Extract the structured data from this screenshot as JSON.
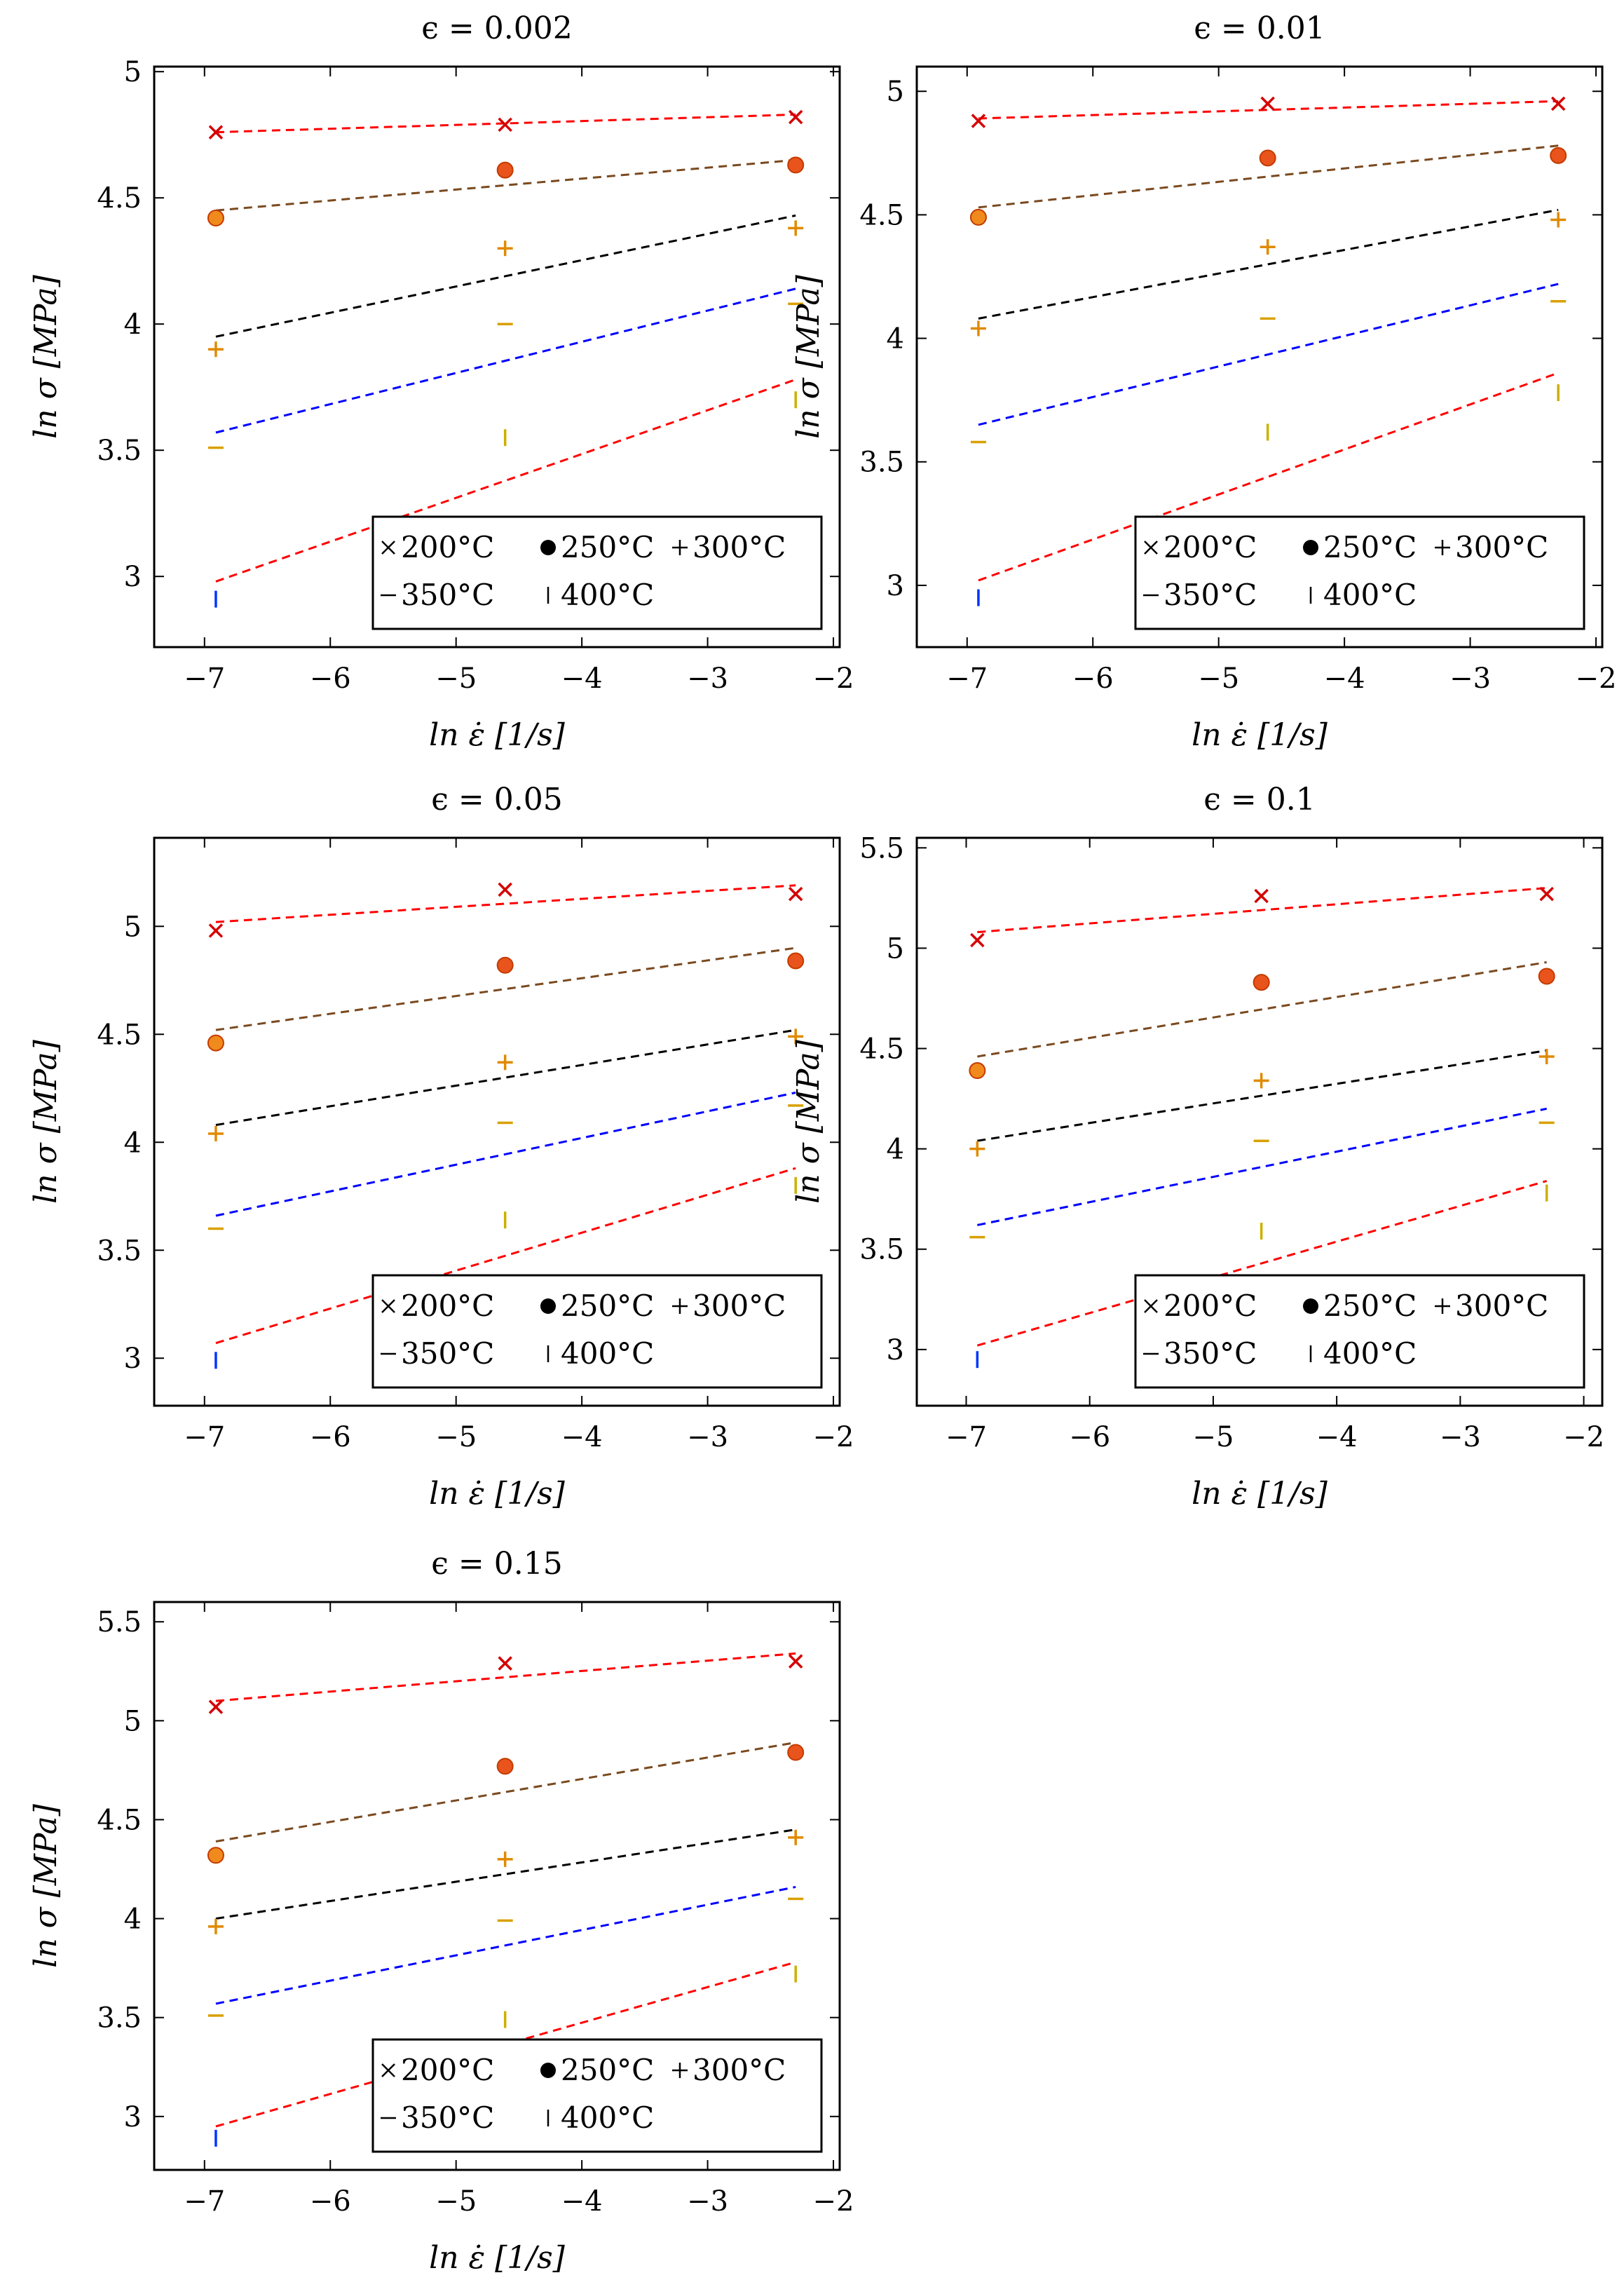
{
  "figure": {
    "xlabel": "ln ε̇ [1/s]",
    "ylabel": "ln σ [MPa]",
    "legend": [
      "200°C",
      "250°C",
      "300°C",
      "350°C",
      "400°C"
    ]
  },
  "colors": {
    "series_200": "#d40000",
    "series_250": "#e8541c",
    "series_300": "#e08a00",
    "series_350": "#d9a000",
    "series_400": "#ccb000",
    "fit_200": "#ff0000",
    "fit_250": "#7a4a20",
    "fit_300": "#000000",
    "fit_350": "#0000ff",
    "fit_400": "#ff0000",
    "marker_400_low": "#0033ff"
  },
  "chart_data": [
    {
      "type": "scatter",
      "title": "ϵ = 0.002",
      "xlabel": "ln ε̇ [1/s]",
      "ylabel": "ln σ [MPa]",
      "xlim": [
        -7.4,
        -1.95
      ],
      "ylim": [
        2.72,
        5.02
      ],
      "xticks": [
        -7,
        -6,
        -5,
        -4,
        -3,
        -2
      ],
      "yticks": [
        3,
        3.5,
        4,
        4.5,
        5
      ],
      "legend_position": "bottom-right",
      "x": [
        -6.91,
        -4.61,
        -2.3
      ],
      "series": [
        {
          "name": "200°C",
          "marker": "x",
          "values": [
            4.76,
            4.79,
            4.82
          ],
          "fit": [
            4.76,
            4.83
          ]
        },
        {
          "name": "250°C",
          "marker": "circle",
          "values": [
            4.42,
            4.61,
            4.63
          ],
          "fit": [
            4.45,
            4.65
          ]
        },
        {
          "name": "300°C",
          "marker": "plus",
          "values": [
            3.9,
            4.3,
            4.38
          ],
          "fit": [
            3.95,
            4.43
          ]
        },
        {
          "name": "350°C",
          "marker": "minus",
          "values": [
            3.51,
            4.0,
            4.08
          ],
          "fit": [
            3.57,
            4.14
          ]
        },
        {
          "name": "400°C",
          "marker": "bar",
          "values": [
            2.91,
            3.55,
            3.7
          ],
          "fit": [
            2.98,
            3.78
          ]
        }
      ]
    },
    {
      "type": "scatter",
      "title": "ϵ = 0.01",
      "xlabel": "ln ε̇ [1/s]",
      "ylabel": "ln σ [MPa]",
      "xlim": [
        -7.4,
        -1.95
      ],
      "ylim": [
        2.75,
        5.1
      ],
      "xticks": [
        -7,
        -6,
        -5,
        -4,
        -3,
        -2
      ],
      "yticks": [
        3,
        3.5,
        4,
        4.5,
        5
      ],
      "legend_position": "bottom-right",
      "x": [
        -6.91,
        -4.61,
        -2.3
      ],
      "series": [
        {
          "name": "200°C",
          "marker": "x",
          "values": [
            4.88,
            4.95,
            4.95
          ],
          "fit": [
            4.89,
            4.96
          ]
        },
        {
          "name": "250°C",
          "marker": "circle",
          "values": [
            4.49,
            4.73,
            4.74
          ],
          "fit": [
            4.53,
            4.78
          ]
        },
        {
          "name": "300°C",
          "marker": "plus",
          "values": [
            4.04,
            4.37,
            4.48
          ],
          "fit": [
            4.08,
            4.52
          ]
        },
        {
          "name": "350°C",
          "marker": "minus",
          "values": [
            3.58,
            4.08,
            4.15
          ],
          "fit": [
            3.65,
            4.22
          ]
        },
        {
          "name": "400°C",
          "marker": "bar",
          "values": [
            2.95,
            3.62,
            3.78
          ],
          "fit": [
            3.02,
            3.86
          ]
        }
      ]
    },
    {
      "type": "scatter",
      "title": "ϵ = 0.05",
      "xlabel": "ln ε̇ [1/s]",
      "ylabel": "ln σ [MPa]",
      "xlim": [
        -7.4,
        -1.95
      ],
      "ylim": [
        2.78,
        5.41
      ],
      "xticks": [
        -7,
        -6,
        -5,
        -4,
        -3,
        -2
      ],
      "yticks": [
        3,
        3.5,
        4,
        4.5,
        5
      ],
      "legend_position": "bottom-right",
      "x": [
        -6.91,
        -4.61,
        -2.3
      ],
      "series": [
        {
          "name": "200°C",
          "marker": "x",
          "values": [
            4.98,
            5.17,
            5.15
          ],
          "fit": [
            5.02,
            5.19
          ]
        },
        {
          "name": "250°C",
          "marker": "circle",
          "values": [
            4.46,
            4.82,
            4.84
          ],
          "fit": [
            4.52,
            4.9
          ]
        },
        {
          "name": "300°C",
          "marker": "plus",
          "values": [
            4.04,
            4.37,
            4.49
          ],
          "fit": [
            4.08,
            4.52
          ]
        },
        {
          "name": "350°C",
          "marker": "minus",
          "values": [
            3.6,
            4.09,
            4.17
          ],
          "fit": [
            3.66,
            4.23
          ]
        },
        {
          "name": "400°C",
          "marker": "bar",
          "values": [
            2.99,
            3.64,
            3.8
          ],
          "fit": [
            3.07,
            3.88
          ]
        }
      ]
    },
    {
      "type": "scatter",
      "title": "ϵ = 0.1",
      "xlabel": "ln ε̇ [1/s]",
      "ylabel": "ln σ [MPa]",
      "xlim": [
        -7.4,
        -1.85
      ],
      "ylim": [
        2.72,
        5.55
      ],
      "xticks": [
        -7,
        -6,
        -5,
        -4,
        -3,
        -2
      ],
      "yticks": [
        3,
        3.5,
        4,
        4.5,
        5,
        5.5
      ],
      "legend_position": "bottom-right",
      "x": [
        -6.91,
        -4.61,
        -2.3
      ],
      "series": [
        {
          "name": "200°C",
          "marker": "x",
          "values": [
            5.04,
            5.26,
            5.27
          ],
          "fit": [
            5.08,
            5.3
          ]
        },
        {
          "name": "250°C",
          "marker": "circle",
          "values": [
            4.39,
            4.83,
            4.86
          ],
          "fit": [
            4.46,
            4.93
          ]
        },
        {
          "name": "300°C",
          "marker": "plus",
          "values": [
            4.0,
            4.34,
            4.46
          ],
          "fit": [
            4.04,
            4.49
          ]
        },
        {
          "name": "350°C",
          "marker": "minus",
          "values": [
            3.56,
            4.04,
            4.13
          ],
          "fit": [
            3.62,
            4.2
          ]
        },
        {
          "name": "400°C",
          "marker": "bar",
          "values": [
            2.95,
            3.59,
            3.78
          ],
          "fit": [
            3.02,
            3.84
          ]
        }
      ]
    },
    {
      "type": "scatter",
      "title": "ϵ = 0.15",
      "xlabel": "ln ε̇ [1/s]",
      "ylabel": "ln σ [MPa]",
      "xlim": [
        -7.4,
        -1.95
      ],
      "ylim": [
        2.73,
        5.6
      ],
      "xticks": [
        -7,
        -6,
        -5,
        -4,
        -3,
        -2
      ],
      "yticks": [
        3,
        3.5,
        4,
        4.5,
        5,
        5.5
      ],
      "legend_position": "bottom-right",
      "x": [
        -6.91,
        -4.61,
        -2.3
      ],
      "series": [
        {
          "name": "200°C",
          "marker": "x",
          "values": [
            5.07,
            5.29,
            5.3
          ],
          "fit": [
            5.1,
            5.34
          ]
        },
        {
          "name": "250°C",
          "marker": "circle",
          "values": [
            4.32,
            4.77,
            4.84
          ],
          "fit": [
            4.39,
            4.89
          ]
        },
        {
          "name": "300°C",
          "marker": "plus",
          "values": [
            3.96,
            4.3,
            4.41
          ],
          "fit": [
            4.0,
            4.45
          ]
        },
        {
          "name": "350°C",
          "marker": "minus",
          "values": [
            3.51,
            3.99,
            4.1
          ],
          "fit": [
            3.57,
            4.16
          ]
        },
        {
          "name": "400°C",
          "marker": "bar",
          "values": [
            2.89,
            3.49,
            3.72
          ],
          "fit": [
            2.95,
            3.78
          ]
        }
      ]
    }
  ]
}
